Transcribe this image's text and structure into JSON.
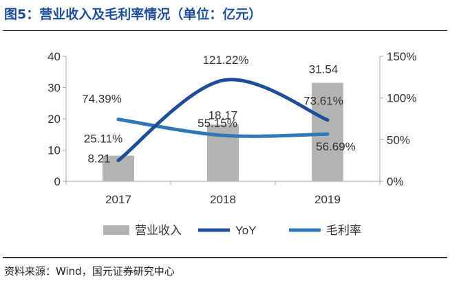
{
  "figure": {
    "title": "图5：营业收入及毛利率情况（单位：亿元）",
    "source": "资料来源：Wind，国元证券研究中心"
  },
  "colors": {
    "title": "#1f4e99",
    "bar": "#b3b3b3",
    "yoy": "#1f4e99",
    "gross_margin": "#2f78b5",
    "axis": "#a6a6a6",
    "text": "#333333"
  },
  "chart_data": {
    "type": "bar",
    "categories": [
      "2017",
      "2018",
      "2019"
    ],
    "series": [
      {
        "name": "营业收入",
        "type": "bar",
        "axis": "left",
        "values": [
          8.21,
          18.17,
          31.54
        ],
        "labels": [
          "8.21",
          "18.17",
          "31.54"
        ]
      },
      {
        "name": "YoY",
        "type": "line",
        "axis": "right",
        "values": [
          25.11,
          121.22,
          73.61
        ],
        "labels": [
          "25.11%",
          "121.22%",
          "73.61%"
        ]
      },
      {
        "name": "毛利率",
        "type": "line",
        "axis": "right",
        "values": [
          74.39,
          55.15,
          56.69
        ],
        "labels": [
          "74.39%",
          "55.15%",
          "56.69%"
        ]
      }
    ],
    "y_left": {
      "min": 0,
      "max": 40,
      "ticks": [
        0,
        10,
        20,
        30,
        40
      ],
      "tick_labels": [
        "0",
        "10",
        "20",
        "30",
        "40"
      ]
    },
    "y_right": {
      "min": 0,
      "max": 150,
      "ticks": [
        0,
        50,
        100,
        150
      ],
      "tick_labels": [
        "0%",
        "50%",
        "100%",
        "150%"
      ]
    },
    "legend": {
      "position": "bottom",
      "items": [
        "营业收入",
        "YoY",
        "毛利率"
      ]
    },
    "grid": false
  }
}
